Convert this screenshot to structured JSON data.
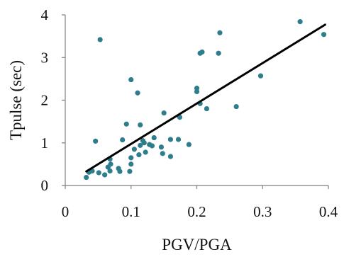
{
  "chart_data": {
    "type": "scatter",
    "title": "",
    "xlabel": "PGV/PGA",
    "ylabel": "Tpulse (sec)",
    "xlim": [
      0,
      0.4
    ],
    "ylim": [
      0,
      4
    ],
    "x_ticks": [
      0,
      0.1,
      0.2,
      0.3,
      0.4
    ],
    "x_tick_labels": [
      "0",
      "0.1",
      "0.2",
      "0.3",
      "0.4"
    ],
    "y_ticks": [
      0,
      1,
      2,
      3,
      4
    ],
    "y_tick_labels": [
      "0",
      "1",
      "2",
      "3",
      "4"
    ],
    "grid": false,
    "legend": "none",
    "colors": {
      "points": "#2e7d8c",
      "trendline": "#000000",
      "axes": "#7f7f7f"
    },
    "series": [
      {
        "points": [
          [
            0.032,
            0.19
          ],
          [
            0.036,
            0.31
          ],
          [
            0.041,
            0.34
          ],
          [
            0.046,
            1.04
          ],
          [
            0.051,
            0.3
          ],
          [
            0.053,
            3.42
          ],
          [
            0.06,
            0.25
          ],
          [
            0.065,
            0.43
          ],
          [
            0.068,
            0.34
          ],
          [
            0.069,
            0.5
          ],
          [
            0.068,
            0.62
          ],
          [
            0.081,
            0.4
          ],
          [
            0.083,
            0.33
          ],
          [
            0.087,
            1.07
          ],
          [
            0.093,
            1.44
          ],
          [
            0.098,
            0.33
          ],
          [
            0.1,
            0.5
          ],
          [
            0.1,
            0.65
          ],
          [
            0.1,
            2.48
          ],
          [
            0.105,
            0.85
          ],
          [
            0.11,
            2.17
          ],
          [
            0.112,
            0.72
          ],
          [
            0.114,
            0.94
          ],
          [
            0.114,
            1.42
          ],
          [
            0.118,
            1.05
          ],
          [
            0.12,
            1.0
          ],
          [
            0.122,
            0.78
          ],
          [
            0.128,
            0.96
          ],
          [
            0.132,
            0.93
          ],
          [
            0.135,
            1.12
          ],
          [
            0.146,
            0.9
          ],
          [
            0.148,
            0.75
          ],
          [
            0.15,
            1.7
          ],
          [
            0.16,
            0.68
          ],
          [
            0.16,
            1.08
          ],
          [
            0.172,
            1.08
          ],
          [
            0.174,
            1.6
          ],
          [
            0.188,
            0.96
          ],
          [
            0.2,
            2.28
          ],
          [
            0.2,
            2.2
          ],
          [
            0.205,
            1.92
          ],
          [
            0.205,
            3.1
          ],
          [
            0.208,
            3.13
          ],
          [
            0.215,
            1.8
          ],
          [
            0.233,
            3.1
          ],
          [
            0.235,
            3.58
          ],
          [
            0.26,
            1.85
          ],
          [
            0.297,
            2.57
          ],
          [
            0.357,
            3.84
          ],
          [
            0.393,
            3.54
          ]
        ]
      }
    ],
    "trendline": {
      "x": [
        0.032,
        0.395
      ],
      "y": [
        0.33,
        3.77
      ]
    }
  }
}
